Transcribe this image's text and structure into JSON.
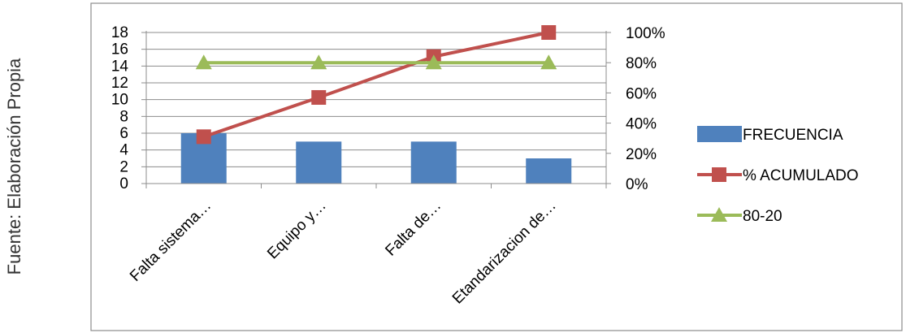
{
  "side_note": "Fuente: Elaboración Propia",
  "colors": {
    "frame": "#8c8c8c",
    "grid": "#8c8c8c",
    "bar": "#4f81bd",
    "cumulative": "#c0504d",
    "threshold": "#9bbb59"
  },
  "chart_data": {
    "type": "bar",
    "categories": [
      "Falta sistema…",
      "Equipo y…",
      "Falta de…",
      "Etandarizacion de…"
    ],
    "ylim": [
      0,
      18
    ],
    "yticks": [
      0,
      2,
      4,
      6,
      8,
      10,
      12,
      14,
      16,
      18
    ],
    "y2lim": [
      0,
      100
    ],
    "y2ticks": [
      "0%",
      "20%",
      "40%",
      "60%",
      "80%",
      "100%"
    ],
    "grid": true,
    "legend_position": "right",
    "series": [
      {
        "name": "FRECUENCIA",
        "type": "bar",
        "axis": "left",
        "values": [
          6,
          5,
          5,
          3
        ]
      },
      {
        "name": "% ACUMULADO",
        "type": "line",
        "axis": "right",
        "marker": "square",
        "values": [
          31,
          57,
          84,
          100
        ]
      },
      {
        "name": "80-20",
        "type": "line",
        "axis": "right",
        "marker": "triangle",
        "values": [
          80,
          80,
          80,
          80
        ]
      }
    ]
  }
}
